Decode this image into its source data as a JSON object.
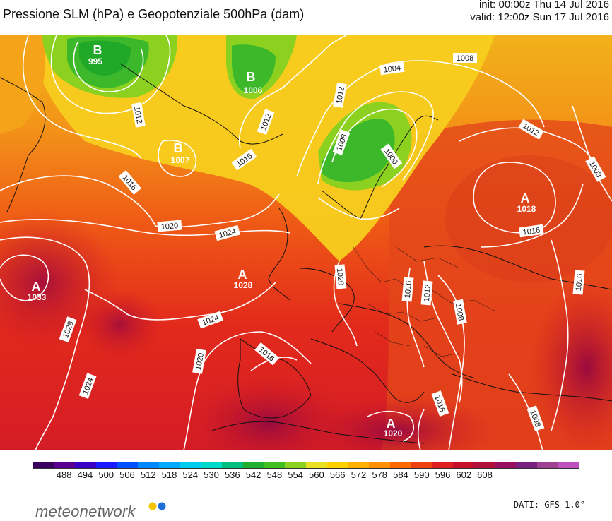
{
  "header": {
    "title": "Pressione SLM (hPa) e Geopotenziale 500hPa (dam)",
    "init": "init: 00:00z Thu 14 Jul 2016",
    "valid": "valid: 12:00z Sun 17 Jul 2016"
  },
  "map": {
    "isobars": [
      "995",
      "1004",
      "1008",
      "1012",
      "1016",
      "1020",
      "1024",
      "1028"
    ],
    "centers": [
      {
        "type": "B",
        "value": "995"
      },
      {
        "type": "B",
        "value": "1006"
      },
      {
        "type": "B",
        "value": "1007"
      },
      {
        "type": "A",
        "value": "1018"
      },
      {
        "type": "A",
        "value": "1028"
      },
      {
        "type": "A",
        "value": "1033"
      },
      {
        "type": "A",
        "value": "1020"
      }
    ],
    "contour_labels": [
      "1004",
      "1008",
      "1012",
      "1012",
      "1008",
      "1000",
      "1012",
      "1016",
      "1016",
      "1020",
      "1024",
      "1024",
      "1016",
      "1020",
      "1024",
      "1028",
      "1020",
      "1016",
      "1016",
      "1012",
      "1008",
      "1016",
      "1012",
      "1008",
      "1008",
      "1016"
    ]
  },
  "legend": {
    "unit": "dam",
    "levels": [
      "488",
      "494",
      "500",
      "506",
      "512",
      "518",
      "524",
      "530",
      "536",
      "542",
      "548",
      "554",
      "560",
      "566",
      "572",
      "578",
      "584",
      "590",
      "596",
      "602",
      "608"
    ],
    "colors": [
      "#3a0060",
      "#5a0090",
      "#3a00c8",
      "#1a1aff",
      "#0050ff",
      "#0088ff",
      "#00aaff",
      "#00ccee",
      "#00d8c8",
      "#00c080",
      "#20b030",
      "#40c020",
      "#8cd020",
      "#e8e020",
      "#ffd000",
      "#ffb000",
      "#ff9000",
      "#ff6a00",
      "#f04010",
      "#e02020",
      "#c8102a",
      "#b0103a",
      "#9a1060",
      "#7a2080",
      "#a04090",
      "#c050c0"
    ]
  },
  "footer": {
    "brand": "meteonetwork",
    "source": "DATI: GFS 1.0°",
    "dot_colors": [
      "#f5c400",
      "#1e6fd9"
    ]
  }
}
